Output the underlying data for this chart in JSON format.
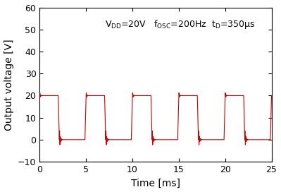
{
  "xlabel": "Time [ms]",
  "ylabel": "Output voltage [V]",
  "xlim": [
    0,
    25
  ],
  "ylim": [
    -10,
    60
  ],
  "xticks": [
    0,
    5,
    10,
    15,
    20,
    25
  ],
  "yticks": [
    -10,
    0,
    10,
    20,
    30,
    40,
    50,
    60
  ],
  "line_color": "#cc0000",
  "line_width": 0.8,
  "period_ms": 5.0,
  "high_level": 20.0,
  "low_level": 0.0,
  "high_duration": 2.0,
  "low_duration": 3.0,
  "fall_time": 0.12,
  "rise_time": 0.12,
  "ringing_amplitude": 5.0,
  "ringing_freq": 12.0,
  "ringing_decay": 12.0,
  "overshoot_amplitude": 1.8,
  "overshoot_freq": 10.0,
  "overshoot_decay": 15.0,
  "background_color": "#ffffff",
  "annotation_fontsize": 9,
  "label_fontsize": 10,
  "tick_fontsize": 9
}
